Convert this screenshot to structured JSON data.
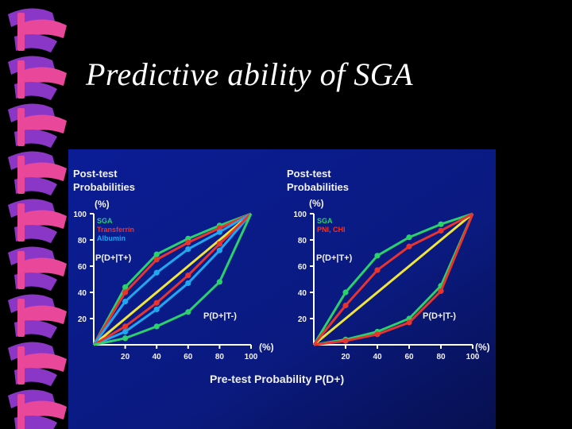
{
  "slide": {
    "title": "Predictive ability of SGA"
  },
  "colors": {
    "background": "#000000",
    "panel": "#0a1e8c",
    "binding_pink": "#e8479a",
    "binding_purple": "#8a37c8",
    "axis": "#ffffff",
    "label": "#f2f2f2",
    "sga": "#2bd16a",
    "transferrin": "#e8342e",
    "albumin": "#21a6f0",
    "pni_chi": "#e8342e",
    "diagonal": "#f0e63a"
  },
  "chart_data": [
    {
      "type": "line",
      "title": "Post-test Probabilities",
      "ylabel": "(%)",
      "xlabel": "(%)",
      "xlim": [
        0,
        100
      ],
      "ylim": [
        0,
        100
      ],
      "x_ticks": [
        20,
        40,
        60,
        80,
        100
      ],
      "y_ticks": [
        20,
        40,
        60,
        80,
        100
      ],
      "annotations": [
        "P(D+|T+)",
        "P(D+|T-)"
      ],
      "legend": [
        "SGA",
        "Transferrin",
        "Albumin"
      ],
      "series": [
        {
          "name": "SGA",
          "group": "P(D+|T+)",
          "x": [
            0,
            20,
            40,
            60,
            80,
            100
          ],
          "y": [
            0,
            44,
            69,
            81,
            91,
            100
          ]
        },
        {
          "name": "Transferrin",
          "group": "P(D+|T+)",
          "x": [
            0,
            20,
            40,
            60,
            80,
            100
          ],
          "y": [
            0,
            40,
            65,
            78,
            89,
            100
          ]
        },
        {
          "name": "Albumin",
          "group": "P(D+|T+)",
          "x": [
            0,
            20,
            40,
            60,
            80,
            100
          ],
          "y": [
            0,
            33,
            55,
            73,
            86,
            100
          ]
        },
        {
          "name": "",
          "group": "P(D+|T-)",
          "x": [
            0,
            20,
            40,
            60,
            80,
            100
          ],
          "y": [
            0,
            10,
            27,
            47,
            72,
            100
          ]
        },
        {
          "name": "",
          "group": "P(D+|T-)",
          "x": [
            0,
            20,
            40,
            60,
            80,
            100
          ],
          "y": [
            0,
            14,
            32,
            53,
            77,
            100
          ]
        },
        {
          "name": "",
          "group": "P(D+|T-)",
          "x": [
            0,
            20,
            40,
            60,
            80,
            100
          ],
          "y": [
            0,
            5,
            14,
            25,
            48,
            100
          ]
        }
      ],
      "reference_line": {
        "x": [
          0,
          100
        ],
        "y": [
          0,
          100
        ]
      }
    },
    {
      "type": "line",
      "title": "Post-test Probabilities",
      "ylabel": "(%)",
      "xlabel": "(%)",
      "xlim": [
        0,
        100
      ],
      "ylim": [
        0,
        100
      ],
      "x_ticks": [
        20,
        40,
        60,
        80,
        100
      ],
      "y_ticks": [
        20,
        40,
        60,
        80,
        100
      ],
      "annotations": [
        "P(D+|T+)",
        "P(D+|T-)"
      ],
      "legend": [
        "SGA",
        "PNI, CHI"
      ],
      "series": [
        {
          "name": "SGA",
          "group": "P(D+|T+)",
          "x": [
            0,
            20,
            40,
            60,
            80,
            100
          ],
          "y": [
            0,
            40,
            68,
            82,
            92,
            100
          ]
        },
        {
          "name": "PNI, CHI",
          "group": "P(D+|T+)",
          "x": [
            0,
            20,
            40,
            60,
            80,
            100
          ],
          "y": [
            0,
            30,
            57,
            75,
            87,
            100
          ]
        },
        {
          "name": "SGA",
          "group": "P(D+|T-)",
          "x": [
            0,
            20,
            40,
            60,
            80,
            100
          ],
          "y": [
            0,
            4,
            10,
            20,
            45,
            100
          ]
        },
        {
          "name": "PNI, CHI",
          "group": "P(D+|T-)",
          "x": [
            0,
            20,
            40,
            60,
            80,
            100
          ],
          "y": [
            0,
            3,
            8,
            17,
            41,
            100
          ]
        }
      ],
      "reference_line": {
        "x": [
          0,
          100
        ],
        "y": [
          0,
          100
        ]
      }
    }
  ],
  "footer": {
    "xlabel": "Pre-test Probability P(D+)"
  }
}
